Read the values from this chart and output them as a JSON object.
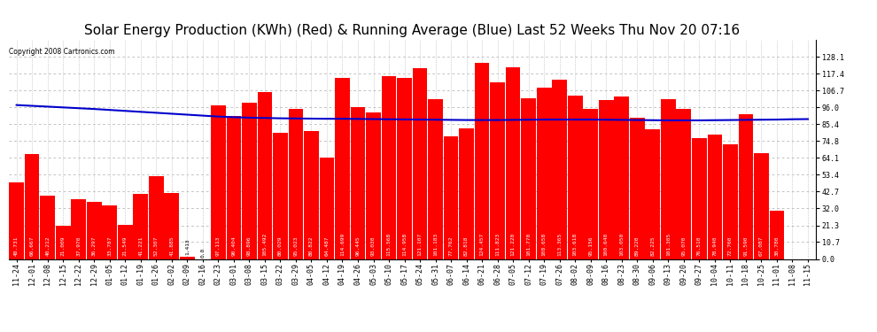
{
  "title": "Solar Energy Production (KWh) (Red) & Running Average (Blue) Last 52 Weeks Thu Nov 20 07:16",
  "copyright": "Copyright 2008 Cartronics.com",
  "ylabel_right_values": [
    128.1,
    117.4,
    106.7,
    96.0,
    85.4,
    74.8,
    64.1,
    53.4,
    42.7,
    32.0,
    21.3,
    10.7,
    0.0
  ],
  "bar_color": "#ff0000",
  "line_color": "#0000cc",
  "background_color": "#ffffff",
  "grid_color": "#aaaaaa",
  "categories": [
    "11-24",
    "12-01",
    "12-08",
    "12-15",
    "12-22",
    "12-29",
    "01-05",
    "01-12",
    "01-19",
    "01-26",
    "02-02",
    "02-09",
    "02-16",
    "02-23",
    "03-01",
    "03-08",
    "03-15",
    "03-22",
    "03-29",
    "04-05",
    "04-12",
    "04-19",
    "04-26",
    "05-03",
    "05-10",
    "05-17",
    "05-24",
    "05-31",
    "06-07",
    "06-14",
    "06-21",
    "06-28",
    "07-05",
    "07-12",
    "07-19",
    "07-26",
    "08-02",
    "08-09",
    "08-16",
    "08-23",
    "08-30",
    "09-06",
    "09-13",
    "09-20",
    "09-27",
    "10-04",
    "10-11",
    "10-18",
    "10-25",
    "11-01",
    "11-08",
    "11-15"
  ],
  "values": [
    48.731,
    66.667,
    40.212,
    21.009,
    37.97,
    36.297,
    33.787,
    21.549,
    41.221,
    52.307,
    41.885,
    1.413,
    0.0,
    97.113,
    90.404,
    98.896,
    105.492,
    80.029,
    95.023,
    80.822,
    64.487,
    114.699,
    96.445,
    93.03,
    115.568,
    114.958,
    121.107,
    101.183,
    77.762,
    82.818,
    124.457,
    111.823,
    121.22,
    101.77,
    108.658,
    113.365,
    103.618,
    95.156,
    100.64,
    103.05,
    89.22,
    82.225,
    101.305,
    95.07,
    76.51,
    78.94,
    72.76,
    91.59,
    67.087,
    30.78,
    0.0,
    0.0
  ],
  "running_avg": [
    97.5,
    97.0,
    96.5,
    96.0,
    95.5,
    95.0,
    94.4,
    93.8,
    93.2,
    92.6,
    92.0,
    91.4,
    90.8,
    90.2,
    89.8,
    89.5,
    89.3,
    89.1,
    89.0,
    88.9,
    88.8,
    88.8,
    88.7,
    88.6,
    88.5,
    88.4,
    88.3,
    88.2,
    88.1,
    88.0,
    88.0,
    88.0,
    88.1,
    88.2,
    88.3,
    88.3,
    88.3,
    88.3,
    88.2,
    88.1,
    88.0,
    87.9,
    87.8,
    87.8,
    87.8,
    87.9,
    88.0,
    88.1,
    88.2,
    88.3,
    88.5,
    88.6
  ],
  "ylim": [
    0,
    138.8
  ],
  "title_fontsize": 11,
  "tick_fontsize": 6.0,
  "label_fontsize": 4.5
}
